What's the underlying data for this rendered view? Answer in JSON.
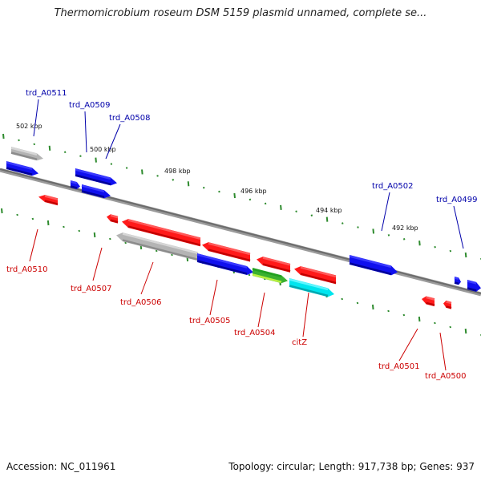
{
  "title": "Thermomicrobium roseum DSM 5159 plasmid unnamed, complete se...",
  "footer": {
    "accession": "Accession: NC_011961",
    "summary": "Topology: circular; Length: 917,738 bp; Genes: 937"
  },
  "colors": {
    "backbone": "#808080",
    "plus_label": "#0000aa",
    "minus_label": "#cc0000",
    "tick": "#2e8b2e",
    "red": "#ff1a1a",
    "blue": "#1010ee",
    "gray": "#b4b4b4",
    "green": "#3ab030",
    "cyan": "#00e5ee"
  },
  "kbp_marks": [
    "502 kbp",
    "500 kbp",
    "498 kbp",
    "496 kbp",
    "494 kbp",
    "492 kbp"
  ],
  "gene_labels": [
    {
      "name": "trd_A0511",
      "strand": "+"
    },
    {
      "name": "trd_A0509",
      "strand": "+"
    },
    {
      "name": "trd_A0508",
      "strand": "+"
    },
    {
      "name": "trd_A0502",
      "strand": "+"
    },
    {
      "name": "trd_A0499",
      "strand": "+"
    },
    {
      "name": "trd_A0510",
      "strand": "-"
    },
    {
      "name": "trd_A0507",
      "strand": "-"
    },
    {
      "name": "trd_A0506",
      "strand": "-"
    },
    {
      "name": "trd_A0505",
      "strand": "-"
    },
    {
      "name": "trd_A0504",
      "strand": "-"
    },
    {
      "name": "citZ",
      "strand": "-"
    },
    {
      "name": "trd_A0501",
      "strand": "-"
    },
    {
      "name": "trd_A0500",
      "strand": "-"
    }
  ],
  "genes": [
    {
      "name": "trd_A0511",
      "color": "gray",
      "dir": "right"
    },
    {
      "name": "trd_A0511",
      "color": "blue",
      "dir": "right"
    },
    {
      "name": "trd_A0509",
      "color": "blue",
      "dir": "right"
    },
    {
      "name": "trd_A0509",
      "color": "blue",
      "dir": "right"
    },
    {
      "name": "trd_A0508",
      "color": "blue",
      "dir": "right"
    },
    {
      "name": "trd_A0510",
      "color": "red",
      "dir": "left"
    },
    {
      "name": "trd_A0507",
      "color": "red",
      "dir": "left"
    },
    {
      "name": "trd_A0507",
      "color": "red",
      "dir": "left"
    },
    {
      "name": "trd_A0506",
      "color": "gray",
      "dir": "left"
    },
    {
      "name": "trd_A0506",
      "color": "red",
      "dir": "left"
    },
    {
      "name": "trd_A0505",
      "color": "blue",
      "dir": "right"
    },
    {
      "name": "trd_A0504",
      "color": "red",
      "dir": "left"
    },
    {
      "name": "trd_A0504",
      "color": "green",
      "dir": "right"
    },
    {
      "name": "citZ",
      "color": "red",
      "dir": "left"
    },
    {
      "name": "citZ",
      "color": "cyan",
      "dir": "right"
    },
    {
      "name": "trd_A0502",
      "color": "blue",
      "dir": "right"
    },
    {
      "name": "trd_A0501",
      "color": "red",
      "dir": "left"
    },
    {
      "name": "trd_A0500",
      "color": "red",
      "dir": "left"
    },
    {
      "name": "trd_A0499",
      "color": "blue",
      "dir": "right"
    },
    {
      "name": "trd_A0499",
      "color": "blue",
      "dir": "right"
    }
  ]
}
